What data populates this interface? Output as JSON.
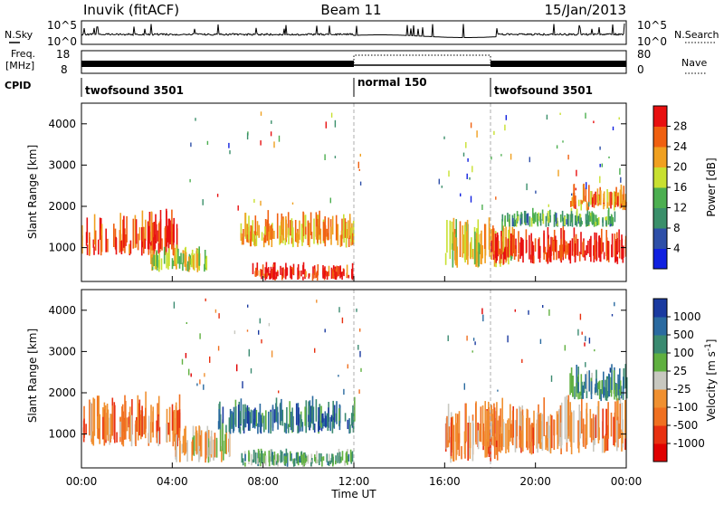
{
  "header": {
    "station": "Inuvik (fitACF)",
    "beam": "Beam 11",
    "date": "15/Jan/2013"
  },
  "top_panels": {
    "nsky_label": "N.Sky",
    "nsky_ticks": [
      "10^5",
      "10^0"
    ],
    "nsearch_label": "N.Search",
    "nsearch_ticks": [
      "10^5",
      "10^0"
    ],
    "freq_label": "Freq.",
    "freq_unit": "[MHz]",
    "freq_ticks": [
      "18",
      "8"
    ],
    "nave_label": "Nave",
    "nave_ticks": [
      "80",
      "0"
    ],
    "cpid_label": "CPID",
    "cpid_segments": [
      {
        "name": "twofsound 3501",
        "start_hour": 0
      },
      {
        "name": "normal 150",
        "start_hour": 12
      },
      {
        "name": "twofsound 3501",
        "start_hour": 18
      }
    ]
  },
  "power_panel": {
    "ylabel": "Slant Range [km]",
    "yticks": [
      "1000",
      "2000",
      "3000",
      "4000"
    ],
    "colorbar_label": "Power [dB]",
    "colorbar_ticks": [
      "4",
      "8",
      "12",
      "16",
      "20",
      "24",
      "28"
    ],
    "colorbar_colors": [
      "#1020e0",
      "#2e4fa8",
      "#3a8f6a",
      "#4caf50",
      "#c8e030",
      "#f0a020",
      "#f06010",
      "#e81010"
    ]
  },
  "velocity_panel": {
    "ylabel": "Slant Range [km]",
    "yticks": [
      "1000",
      "2000",
      "3000",
      "4000"
    ],
    "colorbar_label": "Velocity [m s",
    "colorbar_label_sup": "-1",
    "colorbar_label_end": "]",
    "colorbar_ticks": [
      "1000",
      "500",
      "100",
      "25",
      "-25",
      "-100",
      "-500",
      "-1000"
    ],
    "colorbar_colors": [
      "#1a3aa0",
      "#2a6aa0",
      "#3a8a70",
      "#60b040",
      "#c8c8c0",
      "#f09030",
      "#f07020",
      "#e83010",
      "#e00000"
    ]
  },
  "x_axis": {
    "label": "Time UT",
    "ticks": [
      "00:00",
      "04:00",
      "08:00",
      "12:00",
      "16:00",
      "20:00",
      "00:00"
    ]
  },
  "chart_data": {
    "type": "heatmap",
    "x_range_hours": [
      0,
      24
    ],
    "y_range_km": [
      180,
      4500
    ],
    "power_bands": [
      {
        "t0": 0,
        "t1": 4.2,
        "r0": 800,
        "r1": 1800,
        "level": 0.85
      },
      {
        "t0": 3.0,
        "t1": 5.5,
        "r0": 400,
        "r1": 1000,
        "level": 0.55
      },
      {
        "t0": 7.0,
        "t1": 12.0,
        "r0": 1000,
        "r1": 1800,
        "level": 0.7
      },
      {
        "t0": 7.5,
        "t1": 12.0,
        "r0": 200,
        "r1": 600,
        "level": 0.9
      },
      {
        "t0": 16.0,
        "t1": 19.0,
        "r0": 500,
        "r1": 1700,
        "level": 0.6
      },
      {
        "t0": 18.0,
        "t1": 24.0,
        "r0": 600,
        "r1": 1400,
        "level": 0.92
      },
      {
        "t0": 18.5,
        "t1": 23.5,
        "r0": 1500,
        "r1": 1900,
        "level": 0.4
      },
      {
        "t0": 21.5,
        "t1": 24.0,
        "r0": 1900,
        "r1": 2500,
        "level": 0.75
      }
    ],
    "velocity_bands": [
      {
        "t0": 0,
        "t1": 4.3,
        "r0": 700,
        "r1": 1900,
        "level": 0.7
      },
      {
        "t0": 4.0,
        "t1": 6.5,
        "r0": 300,
        "r1": 1200,
        "level": 0.55
      },
      {
        "t0": 6.0,
        "t1": 12.0,
        "r0": 1000,
        "r1": 1800,
        "level": 0.2
      },
      {
        "t0": 7.0,
        "t1": 12.0,
        "r0": 200,
        "r1": 600,
        "level": 0.35
      },
      {
        "t0": 16.0,
        "t1": 18.5,
        "r0": 300,
        "r1": 1700,
        "level": 0.7
      },
      {
        "t0": 18.0,
        "t1": 24.0,
        "r0": 500,
        "r1": 1800,
        "level": 0.65
      },
      {
        "t0": 21.5,
        "t1": 24.0,
        "r0": 1800,
        "r1": 2600,
        "level": 0.3
      }
    ]
  }
}
